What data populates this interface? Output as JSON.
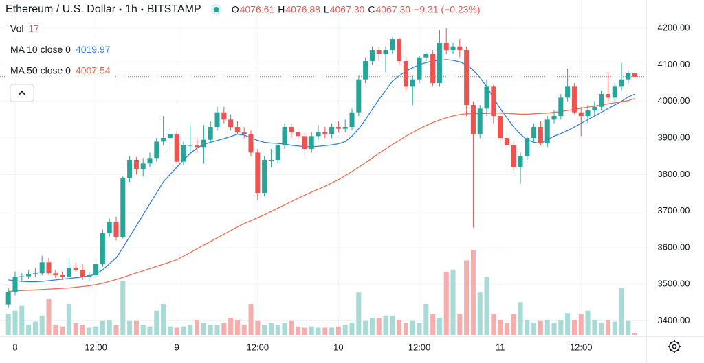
{
  "chart_data": {
    "type": "candlestick",
    "symbol": "Ethereum / U.S. Dollar",
    "interval": "1h",
    "exchange": "BITSTAMP",
    "quote": [
      {
        "key": "O",
        "value": "4076.61"
      },
      {
        "key": "H",
        "value": "4076.88"
      },
      {
        "key": "L",
        "value": "4067.30"
      },
      {
        "key": "C",
        "value": "4067.30"
      }
    ],
    "change": "−9.31 (−0.23%)",
    "indicators": [
      {
        "name": "Vol",
        "value": 17,
        "color": "#ef5350"
      },
      {
        "name": "MA 10 close 0",
        "value": 4019.97,
        "color": "#2f7ee6"
      },
      {
        "name": "MA 50 close 0",
        "value": 4007.54,
        "color": "#ef6c4f"
      }
    ],
    "up_color": "#26a69a",
    "down_color": "#ef5350",
    "volume_up_color": "#a8dbd5",
    "volume_down_color": "#f5aeac",
    "ohlc": [
      [
        3445,
        3490,
        3435,
        3480
      ],
      [
        3480,
        3535,
        3470,
        3520
      ],
      [
        3520,
        3530,
        3510,
        3522
      ],
      [
        3522,
        3540,
        3515,
        3528
      ],
      [
        3528,
        3545,
        3520,
        3530
      ],
      [
        3530,
        3578,
        3525,
        3560
      ],
      [
        3560,
        3572,
        3525,
        3530
      ],
      [
        3530,
        3540,
        3518,
        3525
      ],
      [
        3525,
        3535,
        3512,
        3520
      ],
      [
        3520,
        3570,
        3515,
        3545
      ],
      [
        3545,
        3560,
        3535,
        3540
      ],
      [
        3540,
        3555,
        3512,
        3520
      ],
      [
        3520,
        3535,
        3510,
        3525
      ],
      [
        3525,
        3570,
        3518,
        3555
      ],
      [
        3555,
        3650,
        3548,
        3640
      ],
      [
        3640,
        3680,
        3630,
        3670
      ],
      [
        3670,
        3685,
        3620,
        3630
      ],
      [
        3630,
        3795,
        3625,
        3790
      ],
      [
        3790,
        3850,
        3780,
        3840
      ],
      [
        3840,
        3848,
        3800,
        3815
      ],
      [
        3815,
        3845,
        3795,
        3830
      ],
      [
        3830,
        3860,
        3820,
        3845
      ],
      [
        3845,
        3900,
        3835,
        3890
      ],
      [
        3890,
        3960,
        3880,
        3900
      ],
      [
        3900,
        3925,
        3870,
        3910
      ],
      [
        3910,
        3920,
        3830,
        3835
      ],
      [
        3835,
        3890,
        3825,
        3880
      ],
      [
        3880,
        3935,
        3860,
        3880
      ],
      [
        3880,
        3900,
        3860,
        3875
      ],
      [
        3875,
        3935,
        3830,
        3895
      ],
      [
        3895,
        3945,
        3885,
        3930
      ],
      [
        3930,
        3985,
        3920,
        3970
      ],
      [
        3970,
        3985,
        3940,
        3950
      ],
      [
        3950,
        3965,
        3920,
        3930
      ],
      [
        3930,
        3945,
        3910,
        3915
      ],
      [
        3915,
        3930,
        3900,
        3910
      ],
      [
        3910,
        3920,
        3850,
        3860
      ],
      [
        3860,
        3870,
        3730,
        3750
      ],
      [
        3750,
        3850,
        3740,
        3840
      ],
      [
        3840,
        3870,
        3820,
        3840
      ],
      [
        3840,
        3890,
        3830,
        3880
      ],
      [
        3880,
        3940,
        3870,
        3930
      ],
      [
        3930,
        3940,
        3900,
        3915
      ],
      [
        3915,
        3925,
        3890,
        3905
      ],
      [
        3905,
        3915,
        3850,
        3870
      ],
      [
        3870,
        3915,
        3860,
        3905
      ],
      [
        3905,
        3935,
        3895,
        3915
      ],
      [
        3915,
        3930,
        3900,
        3910
      ],
      [
        3910,
        3940,
        3900,
        3930
      ],
      [
        3930,
        3945,
        3915,
        3925
      ],
      [
        3925,
        3950,
        3915,
        3930
      ],
      [
        3930,
        3980,
        3920,
        3970
      ],
      [
        3970,
        4070,
        3960,
        4060
      ],
      [
        4060,
        4120,
        4050,
        4110
      ],
      [
        4110,
        4150,
        4100,
        4140
      ],
      [
        4140,
        4150,
        4110,
        4130
      ],
      [
        4130,
        4150,
        4080,
        4140
      ],
      [
        4140,
        4175,
        4130,
        4170
      ],
      [
        4170,
        4175,
        4100,
        4110
      ],
      [
        4110,
        4120,
        4030,
        4040
      ],
      [
        4040,
        4070,
        3990,
        4060
      ],
      [
        4060,
        4125,
        4050,
        4120
      ],
      [
        4120,
        4135,
        4110,
        4130
      ],
      [
        4130,
        4140,
        4040,
        4050
      ],
      [
        4050,
        4195,
        4040,
        4160
      ],
      [
        4160,
        4200,
        4130,
        4140
      ],
      [
        4140,
        4160,
        4130,
        4150
      ],
      [
        4150,
        4170,
        4120,
        4140
      ],
      [
        4140,
        4150,
        3960,
        3990
      ],
      [
        3990,
        4000,
        3655,
        3910
      ],
      [
        3910,
        3990,
        3900,
        3980
      ],
      [
        3980,
        4060,
        3960,
        4040
      ],
      [
        4040,
        4045,
        3940,
        3960
      ],
      [
        3960,
        3975,
        3890,
        3900
      ],
      [
        3900,
        3915,
        3860,
        3880
      ],
      [
        3880,
        3890,
        3810,
        3820
      ],
      [
        3820,
        3860,
        3775,
        3850
      ],
      [
        3850,
        3905,
        3840,
        3900
      ],
      [
        3900,
        3940,
        3890,
        3930
      ],
      [
        3930,
        3945,
        3880,
        3885
      ],
      [
        3885,
        3960,
        3875,
        3950
      ],
      [
        3950,
        3975,
        3940,
        3960
      ],
      [
        3960,
        4020,
        3950,
        4010
      ],
      [
        4010,
        4090,
        4000,
        4040
      ],
      [
        4040,
        4050,
        3965,
        3970
      ],
      [
        3970,
        3985,
        3905,
        3960
      ],
      [
        3960,
        3990,
        3940,
        3975
      ],
      [
        3975,
        4000,
        3960,
        3985
      ],
      [
        3985,
        4030,
        3975,
        4020
      ],
      [
        4020,
        4080,
        4000,
        4010
      ],
      [
        4010,
        4050,
        4000,
        4040
      ],
      [
        4040,
        4105,
        4030,
        4060
      ],
      [
        4060,
        4085,
        4050,
        4076.61
      ],
      [
        4076.61,
        4076.88,
        4067.3,
        4067.3
      ]
    ],
    "volume": [
      170,
      200,
      240,
      85,
      110,
      160,
      295,
      85,
      70,
      255,
      100,
      85,
      60,
      70,
      115,
      125,
      80,
      445,
      115,
      115,
      85,
      70,
      200,
      255,
      70,
      60,
      70,
      85,
      125,
      100,
      85,
      85,
      100,
      140,
      125,
      85,
      255,
      115,
      85,
      100,
      85,
      100,
      115,
      70,
      60,
      70,
      60,
      60,
      60,
      70,
      85,
      100,
      350,
      115,
      140,
      140,
      160,
      160,
      125,
      100,
      115,
      100,
      255,
      170,
      140,
      520,
      540,
      170,
      615,
      700,
      350,
      480,
      170,
      125,
      100,
      170,
      270,
      125,
      100,
      115,
      125,
      100,
      125,
      180,
      125,
      170,
      200,
      125,
      100,
      120,
      110,
      385,
      115,
      17
    ],
    "series": [
      {
        "name": "MA 10 close 0",
        "color": "#2f7ee6",
        "values": [
          3512,
          3510,
          3508,
          3507,
          3507,
          3508,
          3510,
          3512,
          3514,
          3516,
          3518,
          3520,
          3523,
          3528,
          3540,
          3556,
          3572,
          3600,
          3630,
          3660,
          3690,
          3720,
          3750,
          3780,
          3800,
          3820,
          3840,
          3858,
          3872,
          3882,
          3888,
          3893,
          3898,
          3904,
          3910,
          3908,
          3900,
          3893,
          3888,
          3886,
          3885,
          3883,
          3880,
          3878,
          3876,
          3876,
          3877,
          3879,
          3881,
          3884,
          3890,
          3905,
          3925,
          3950,
          3978,
          4005,
          4030,
          4055,
          4070,
          4082,
          4092,
          4100,
          4106,
          4110,
          4112,
          4114,
          4112,
          4108,
          4100,
          4085,
          4065,
          4040,
          4010,
          3980,
          3955,
          3930,
          3910,
          3895,
          3888,
          3885,
          3895,
          3905,
          3912,
          3920,
          3930,
          3940,
          3950,
          3960,
          3970,
          3980,
          3990,
          4000,
          4012,
          4019.97
        ]
      },
      {
        "name": "MA 50 close 0",
        "color": "#ef6c4f",
        "values": [
          3481,
          3482,
          3483,
          3484,
          3485,
          3486,
          3487,
          3488,
          3489,
          3490,
          3492,
          3494,
          3496,
          3499,
          3503,
          3508,
          3513,
          3519,
          3525,
          3531,
          3537,
          3543,
          3549,
          3555,
          3561,
          3567,
          3577,
          3587,
          3597,
          3607,
          3617,
          3627,
          3637,
          3647,
          3657,
          3666,
          3674,
          3682,
          3690,
          3699,
          3708,
          3717,
          3726,
          3735,
          3744,
          3752,
          3760,
          3768,
          3777,
          3786,
          3797,
          3808,
          3820,
          3832,
          3845,
          3858,
          3870,
          3882,
          3893,
          3905,
          3915,
          3925,
          3934,
          3942,
          3949,
          3955,
          3960,
          3964,
          3966,
          3966,
          3967,
          3967,
          3968,
          3968,
          3967,
          3966,
          3965,
          3965,
          3966,
          3967,
          3968,
          3970,
          3972,
          3975,
          3978,
          3981,
          3984,
          3987,
          3990,
          3993,
          3996,
          3999,
          4002,
          4007.54
        ]
      }
    ],
    "xlim": [
      -1.245,
      94.16
    ],
    "xticks": [
      {
        "value": 1,
        "label": "8"
      },
      {
        "value": 13,
        "label": "12:00"
      },
      {
        "value": 25,
        "label": "9"
      },
      {
        "value": 37,
        "label": "12:00"
      },
      {
        "value": 49,
        "label": "10"
      },
      {
        "value": 61,
        "label": "12:00"
      },
      {
        "value": 73,
        "label": "11"
      },
      {
        "value": 85,
        "label": "12:00"
      }
    ],
    "ylim": [
      3358,
      4277
    ],
    "yticks": [
      {
        "value": 3400,
        "label": "3400.00"
      },
      {
        "value": 3500,
        "label": "3500.00"
      },
      {
        "value": 3600,
        "label": "3600.00"
      },
      {
        "value": 3700,
        "label": "3700.00"
      },
      {
        "value": 3800,
        "label": "3800.00"
      },
      {
        "value": 3900,
        "label": "3900.00"
      },
      {
        "value": 4000,
        "label": "4000.00"
      },
      {
        "value": 4100,
        "label": "4100.00"
      },
      {
        "value": 4200,
        "label": "4200.00"
      }
    ],
    "volume_lim": [
      0,
      850
    ],
    "grid": true
  }
}
